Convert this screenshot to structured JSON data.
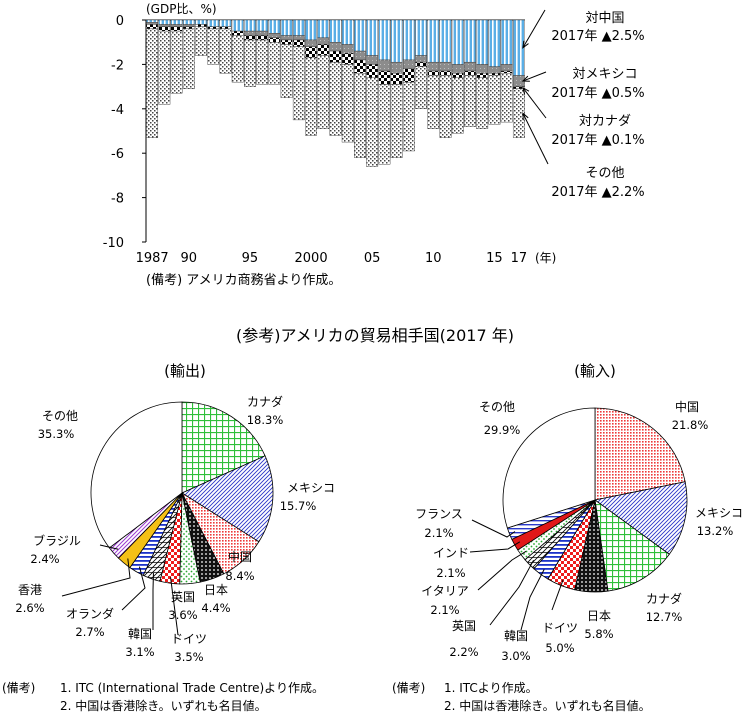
{
  "chart_data": [
    {
      "type": "bar",
      "stacked": true,
      "yunit": "(GDP比、%)",
      "xunit": "(年)",
      "ylim": [
        -10,
        0
      ],
      "yticks": [
        0,
        -2,
        -4,
        -6,
        -8,
        -10
      ],
      "x": [
        1987,
        1988,
        1989,
        1990,
        1991,
        1992,
        1993,
        1994,
        1995,
        1996,
        1997,
        1998,
        1999,
        2000,
        2001,
        2002,
        2003,
        2004,
        2005,
        2006,
        2007,
        2008,
        2009,
        2010,
        2011,
        2012,
        2013,
        2014,
        2015,
        2016,
        2017
      ],
      "xtick_labels": [
        {
          "year": 1987,
          "label": "1987"
        },
        {
          "year": 1990,
          "label": "90"
        },
        {
          "year": 1995,
          "label": "95"
        },
        {
          "year": 2000,
          "label": "2000"
        },
        {
          "year": 2005,
          "label": "05"
        },
        {
          "year": 2010,
          "label": "10"
        },
        {
          "year": 2015,
          "label": "15"
        },
        {
          "year": 2017,
          "label": "17"
        }
      ],
      "series": [
        {
          "name": "対中国",
          "pattern": "china",
          "values": [
            -0.1,
            -0.2,
            -0.2,
            -0.2,
            -0.2,
            -0.3,
            -0.3,
            -0.5,
            -0.5,
            -0.5,
            -0.6,
            -0.7,
            -0.7,
            -0.9,
            -0.8,
            -1.0,
            -1.1,
            -1.4,
            -1.6,
            -1.8,
            -1.9,
            -1.8,
            -1.6,
            -1.9,
            -1.9,
            -2.0,
            -1.9,
            -2.0,
            -2.1,
            -2.0,
            -2.5
          ]
        },
        {
          "name": "対メキシコ",
          "pattern": "mexico",
          "values": [
            -0.1,
            -0.1,
            -0.1,
            -0.1,
            0.0,
            0.0,
            0.0,
            0.0,
            -0.2,
            -0.2,
            -0.2,
            -0.2,
            -0.2,
            -0.3,
            -0.3,
            -0.4,
            -0.4,
            -0.4,
            -0.4,
            -0.5,
            -0.5,
            -0.4,
            -0.3,
            -0.4,
            -0.4,
            -0.4,
            -0.4,
            -0.4,
            -0.3,
            -0.3,
            -0.5
          ]
        },
        {
          "name": "対カナダ",
          "pattern": "canada",
          "values": [
            -0.2,
            -0.2,
            -0.2,
            -0.1,
            -0.1,
            -0.1,
            -0.1,
            -0.2,
            -0.2,
            -0.2,
            -0.2,
            -0.2,
            -0.3,
            -0.5,
            -0.5,
            -0.5,
            -0.5,
            -0.6,
            -0.6,
            -0.6,
            -0.5,
            -0.6,
            -0.2,
            -0.2,
            -0.2,
            -0.2,
            -0.2,
            -0.2,
            -0.1,
            -0.1,
            -0.1
          ]
        },
        {
          "name": "その他",
          "pattern": "other",
          "values": [
            -4.9,
            -3.3,
            -2.8,
            -2.7,
            -1.3,
            -1.6,
            -2.0,
            -2.1,
            -2.1,
            -2.0,
            -1.9,
            -2.4,
            -3.3,
            -3.5,
            -3.3,
            -3.3,
            -3.5,
            -3.8,
            -4.0,
            -3.6,
            -3.3,
            -3.1,
            -1.9,
            -2.4,
            -2.8,
            -2.5,
            -2.3,
            -2.3,
            -2.2,
            -2.2,
            -2.2
          ]
        }
      ],
      "annotations": [
        {
          "target": "対中国",
          "label": "対中国",
          "value": "2017年 ▲2.5%"
        },
        {
          "target": "対メキシコ",
          "label": "対メキシコ",
          "value": "2017年 ▲0.5%"
        },
        {
          "target": "対カナダ",
          "label": "対カナダ",
          "value": "2017年 ▲0.1%"
        },
        {
          "target": "その他",
          "label": "その他",
          "value": "2017年 ▲2.2%"
        }
      ],
      "note": "(備考) アメリカ商務省より作成。"
    },
    {
      "type": "pie",
      "title": "(輸出)",
      "slices": [
        {
          "name": "カナダ",
          "value": 18.3,
          "label": "18.3%",
          "pattern": "greengrid"
        },
        {
          "name": "メキシコ",
          "value": 15.7,
          "label": "15.7%",
          "pattern": "bluediag"
        },
        {
          "name": "中国",
          "value": 8.4,
          "label": "8.4%",
          "pattern": "reddot"
        },
        {
          "name": "日本",
          "value": 4.4,
          "label": "4.4%",
          "pattern": "blackdot"
        },
        {
          "name": "英国",
          "value": 3.6,
          "label": "3.6%",
          "pattern": "greendots"
        },
        {
          "name": "ドイツ",
          "value": 3.5,
          "label": "3.5%",
          "pattern": "redcheck"
        },
        {
          "name": "韓国",
          "value": 3.1,
          "label": "3.1%",
          "pattern": "hatch"
        },
        {
          "name": "オランダ",
          "value": 2.7,
          "label": "2.7%",
          "pattern": "bluehoriz"
        },
        {
          "name": "香港",
          "value": 2.6,
          "label": "2.6%",
          "pattern": "orange"
        },
        {
          "name": "ブラジル",
          "value": 2.4,
          "label": "2.4%",
          "pattern": "purplediag"
        },
        {
          "name": "その他",
          "value": 35.3,
          "label": "35.3%",
          "pattern": "white"
        }
      ]
    },
    {
      "type": "pie",
      "title": "(輸入)",
      "slices": [
        {
          "name": "中国",
          "value": 21.8,
          "label": "21.8%",
          "pattern": "reddot"
        },
        {
          "name": "メキシコ",
          "value": 13.2,
          "label": "13.2%",
          "pattern": "bluediag"
        },
        {
          "name": "カナダ",
          "value": 12.7,
          "label": "12.7%",
          "pattern": "greengrid"
        },
        {
          "name": "日本",
          "value": 5.8,
          "label": "5.8%",
          "pattern": "blackdot"
        },
        {
          "name": "ドイツ",
          "value": 5.0,
          "label": "5.0%",
          "pattern": "redcheck"
        },
        {
          "name": "韓国",
          "value": 3.0,
          "label": "3.0%",
          "pattern": "bluehoriz"
        },
        {
          "name": "英国",
          "value": 2.2,
          "label": "2.2%",
          "pattern": "hatch"
        },
        {
          "name": "イタリア",
          "value": 2.1,
          "label": "2.1%",
          "pattern": "greendots"
        },
        {
          "name": "インド",
          "value": 2.1,
          "label": "2.1%",
          "pattern": "red"
        },
        {
          "name": "フランス",
          "value": 2.1,
          "label": "2.1%",
          "pattern": "bluehoriz2"
        },
        {
          "name": "その他",
          "value": 29.9,
          "label": "29.9%",
          "pattern": "white"
        }
      ]
    }
  ],
  "section_title": "(参考)アメリカの貿易相手国(2017 年)",
  "export_notes": {
    "prefix": "(備考)",
    "line1": "1. ITC (International Trade Centre)より作成。",
    "line2": "2. 中国は香港除き。いずれも名目値。"
  },
  "import_notes": {
    "prefix": "(備考)",
    "line1": "1. ITCより作成。",
    "line2": "2. 中国は香港除き。いずれも名目値。"
  }
}
